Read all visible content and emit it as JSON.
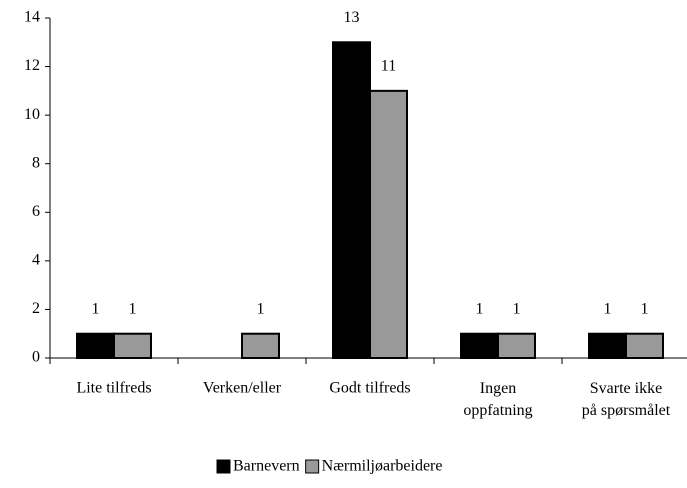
{
  "chart_data": {
    "type": "bar",
    "categories": [
      "Lite tilfreds",
      "Verken/eller",
      "Godt tilfreds",
      "Ingen\noppfatning",
      "Svarte ikke\npå spørsmålet"
    ],
    "series": [
      {
        "name": "Barnevern",
        "color": "#000000",
        "values": [
          1,
          null,
          13,
          1,
          1
        ]
      },
      {
        "name": "Nærmiljøarbeidere",
        "color": "#999999",
        "values": [
          1,
          1,
          11,
          1,
          1
        ]
      }
    ],
    "ylim": [
      0,
      14
    ],
    "yticks": [
      0,
      2,
      4,
      6,
      8,
      10,
      12,
      14
    ],
    "legend": "bottom"
  }
}
